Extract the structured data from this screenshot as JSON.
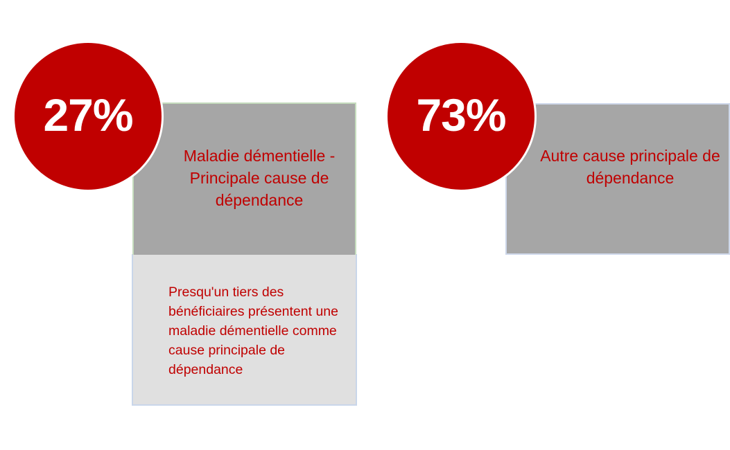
{
  "left": {
    "percent": "27%",
    "title": "Maladie démentielle - Principale cause de dépendance",
    "description": "Presqu'un tiers des bénéficiaires présentent une maladie démentielle comme cause principale de dépendance"
  },
  "right": {
    "percent": "73%",
    "title": "Autre cause principale de dépendance"
  },
  "colors": {
    "accent": "#c00000",
    "box_dark": "#a6a6a6",
    "box_light": "#e0e0e0"
  }
}
